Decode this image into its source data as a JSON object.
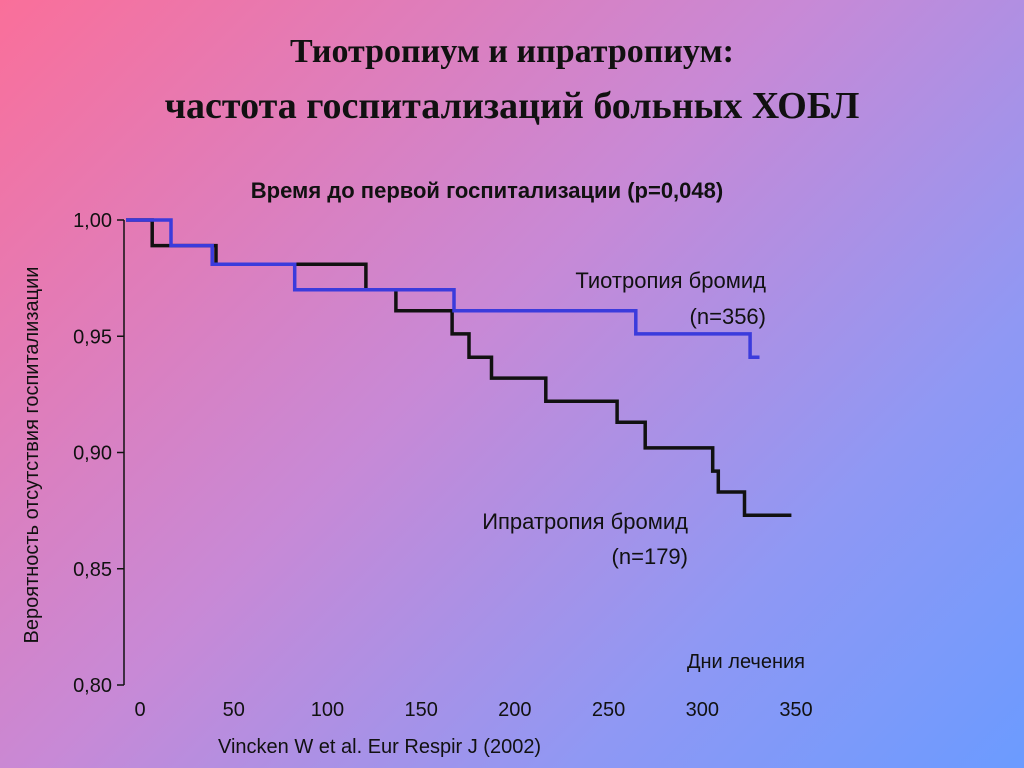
{
  "slide": {
    "title_line1": "Тиотропиум и ипратропиум:",
    "title_line2": "частота госпитализаций больных ХОБЛ",
    "source": "Vincken W et al. Eur Respir J (2002)"
  },
  "colors": {
    "tiotropium": "#3b3bdc",
    "ipratropium": "#111111",
    "axis": "#111111"
  },
  "chart_data": {
    "type": "line",
    "subtype": "kaplan-meier step",
    "title": "Время до первой госпитализации (p=0,048)",
    "xlabel": "Дни лечения",
    "ylabel": "Вероятность отсутствия госпитализации",
    "xlim": [
      0,
      350
    ],
    "ylim": [
      0.8,
      1.0
    ],
    "xticks": [
      "0",
      "50",
      "100",
      "150",
      "200",
      "250",
      "300",
      "350"
    ],
    "xtick_values": [
      0,
      50,
      100,
      150,
      200,
      250,
      300,
      350
    ],
    "yticks": [
      "1,00",
      "0,95",
      "0,90",
      "0,85",
      "0,80"
    ],
    "ytick_values": [
      1.0,
      0.95,
      0.9,
      0.85,
      0.8
    ],
    "grid": false,
    "series": [
      {
        "key": "tiotropium",
        "label_line1": "Тиотропия бромид",
        "label_line2": "(n=356)",
        "points": [
          [
            0,
            1.0
          ],
          [
            24,
            1.0
          ],
          [
            24,
            0.989
          ],
          [
            46,
            0.989
          ],
          [
            46,
            0.981
          ],
          [
            90,
            0.981
          ],
          [
            90,
            0.97
          ],
          [
            175,
            0.97
          ],
          [
            175,
            0.961
          ],
          [
            272,
            0.961
          ],
          [
            272,
            0.951
          ],
          [
            333,
            0.951
          ],
          [
            333,
            0.941
          ],
          [
            338,
            0.941
          ]
        ]
      },
      {
        "key": "ipratropium",
        "label_line1": "Ипратропия бромид",
        "label_line2": "(n=179)",
        "points": [
          [
            0,
            1.0
          ],
          [
            14,
            1.0
          ],
          [
            14,
            0.989
          ],
          [
            48,
            0.989
          ],
          [
            48,
            0.981
          ],
          [
            128,
            0.981
          ],
          [
            128,
            0.97
          ],
          [
            144,
            0.97
          ],
          [
            144,
            0.961
          ],
          [
            174,
            0.961
          ],
          [
            174,
            0.951
          ],
          [
            183,
            0.951
          ],
          [
            183,
            0.941
          ],
          [
            195,
            0.941
          ],
          [
            195,
            0.932
          ],
          [
            224,
            0.932
          ],
          [
            224,
            0.922
          ],
          [
            262,
            0.922
          ],
          [
            262,
            0.913
          ],
          [
            277,
            0.913
          ],
          [
            277,
            0.902
          ],
          [
            313,
            0.902
          ],
          [
            313,
            0.892
          ],
          [
            316,
            0.892
          ],
          [
            316,
            0.883
          ],
          [
            330,
            0.883
          ],
          [
            330,
            0.873
          ],
          [
            355,
            0.873
          ]
        ]
      }
    ]
  }
}
